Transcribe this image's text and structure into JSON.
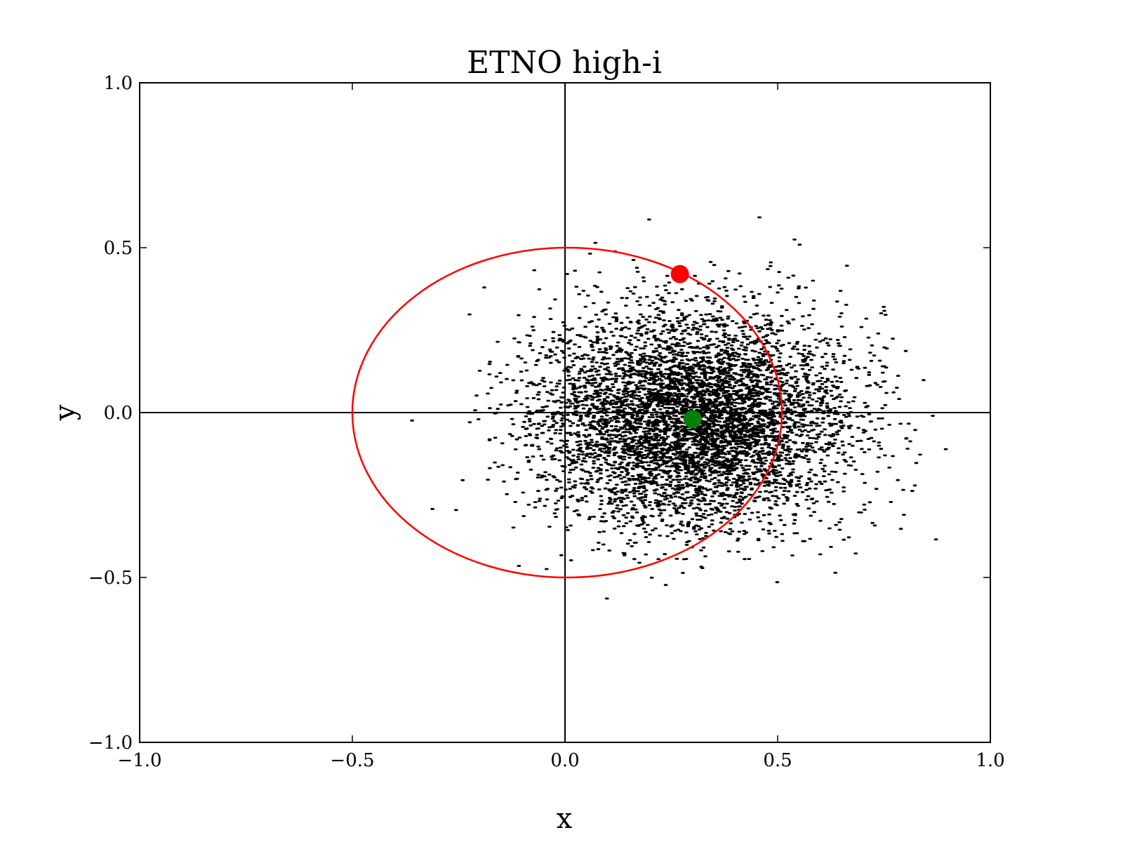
{
  "chart_data": {
    "type": "scatter",
    "title": "ETNO high-i",
    "xlabel": "x",
    "ylabel": "y",
    "xlim": [
      -1.0,
      1.0
    ],
    "ylim": [
      -1.0,
      1.0
    ],
    "x_ticks": [
      -1.0,
      -0.5,
      0.0,
      0.5,
      1.0
    ],
    "y_ticks": [
      -1.0,
      -0.5,
      0.0,
      0.5,
      1.0
    ],
    "x_tick_labels": [
      "−1.0",
      "−0.5",
      "0.0",
      "0.5",
      "1.0"
    ],
    "y_tick_labels": [
      "−1.0",
      "−0.5",
      "0.0",
      "0.5",
      "1.0"
    ],
    "grid": false,
    "zero_lines": true,
    "colors": {
      "scatter": "#000000",
      "orbit": "#ff0000",
      "marker_red": "#ff0000",
      "marker_green": "#008000"
    },
    "scatter_cloud": {
      "center": [
        0.3,
        -0.02
      ],
      "spread": [
        0.18,
        0.16
      ],
      "extent_x": [
        -0.45,
        0.96
      ],
      "extent_y": [
        -0.7,
        0.65
      ]
    },
    "orbit_ellipse": {
      "center": [
        0.005,
        0.0
      ],
      "radius_x": 0.505,
      "radius_y": 0.5
    },
    "markers": [
      {
        "name": "red-point",
        "x": 0.27,
        "y": 0.42,
        "color": "#ff0000"
      },
      {
        "name": "green-point",
        "x": 0.3,
        "y": -0.02,
        "color": "#008000"
      }
    ]
  }
}
